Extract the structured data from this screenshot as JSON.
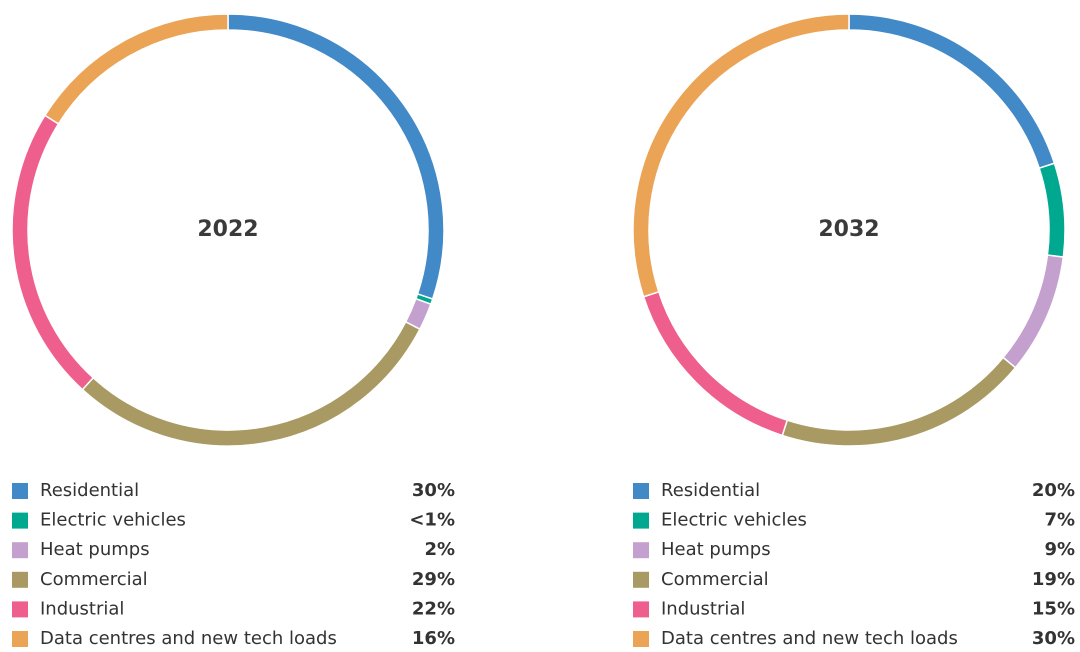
{
  "chart_data": [
    {
      "type": "donut",
      "title": "2022",
      "categories": [
        "Residential",
        "Electric vehicles",
        "Heat pumps",
        "Commercial",
        "Industrial",
        "Data centres and new tech loads"
      ],
      "values": [
        30,
        0.4,
        2,
        29,
        22,
        16
      ],
      "value_labels": [
        "30%",
        "<1%",
        "2%",
        "29%",
        "22%",
        "16%"
      ],
      "colors": [
        "#4289c8",
        "#00a88f",
        "#c4a0cf",
        "#a89a62",
        "#ef5f8d",
        "#eba355"
      ]
    },
    {
      "type": "donut",
      "title": "2032",
      "categories": [
        "Residential",
        "Electric vehicles",
        "Heat pumps",
        "Commercial",
        "Industrial",
        "Data centres and new tech loads"
      ],
      "values": [
        20,
        7,
        9,
        19,
        15,
        30
      ],
      "value_labels": [
        "20%",
        "7%",
        "9%",
        "19%",
        "15%",
        "30%"
      ],
      "colors": [
        "#4289c8",
        "#00a88f",
        "#c4a0cf",
        "#a89a62",
        "#ef5f8d",
        "#eba355"
      ]
    }
  ]
}
